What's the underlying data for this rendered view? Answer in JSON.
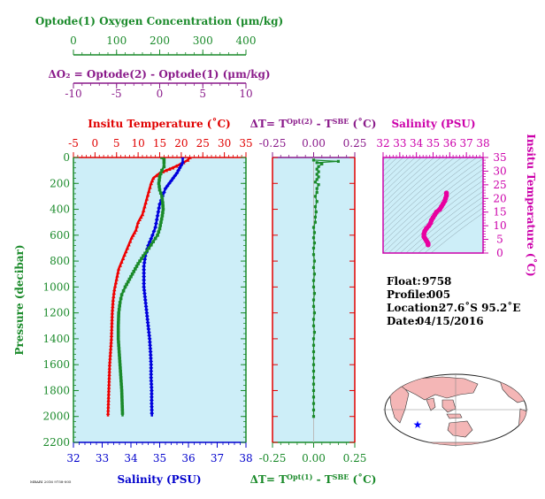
{
  "chart_data": [
    {
      "id": "main_profile",
      "type": "line",
      "ylabel": "Pressure (decibar)",
      "ylim": [
        0,
        2200
      ],
      "yticks": [
        0,
        200,
        400,
        600,
        800,
        1000,
        1200,
        1400,
        1600,
        1800,
        2000,
        2200
      ],
      "axes": {
        "oxygen": {
          "label": "Optode(1) Oxygen Concentration (μm/kg)",
          "range": [
            0,
            400
          ],
          "ticks": [
            0,
            100,
            200,
            300,
            400
          ],
          "color": "#1a8a2a"
        },
        "delta_o2": {
          "label": "ΔO₂ = Optode(2) - Optode(1)   (μm/kg)",
          "range": [
            -10,
            10
          ],
          "ticks": [
            -10,
            -5,
            0,
            5,
            10
          ],
          "color": "#8a1a8a"
        },
        "temperature": {
          "label": "Insitu Temperature (˚C)",
          "range": [
            -5,
            35
          ],
          "ticks": [
            -5,
            0,
            5,
            10,
            15,
            20,
            25,
            30,
            35
          ],
          "color": "#e00000"
        },
        "salinity": {
          "label": "Salinity (PSU)",
          "range": [
            32,
            38
          ],
          "ticks": [
            32,
            33,
            34,
            35,
            36,
            37,
            38
          ],
          "color": "#0000cc"
        }
      },
      "series": [
        {
          "name": "Insitu Temperature",
          "axis": "temperature",
          "color": "#ee0000",
          "points": [
            [
              22,
              0
            ],
            [
              21.5,
              20
            ],
            [
              20.5,
              40
            ],
            [
              18,
              80
            ],
            [
              15,
              120
            ],
            [
              13.5,
              160
            ],
            [
              13,
              200
            ],
            [
              12.5,
              260
            ],
            [
              12,
              320
            ],
            [
              11.5,
              380
            ],
            [
              11,
              440
            ],
            [
              10,
              500
            ],
            [
              9.5,
              560
            ],
            [
              8.5,
              620
            ],
            [
              7.5,
              700
            ],
            [
              6.5,
              780
            ],
            [
              5.5,
              860
            ],
            [
              5,
              940
            ],
            [
              4.5,
              1020
            ],
            [
              4.2,
              1100
            ],
            [
              4,
              1200
            ],
            [
              3.9,
              1300
            ],
            [
              3.8,
              1400
            ],
            [
              3.6,
              1500
            ],
            [
              3.4,
              1600
            ],
            [
              3.3,
              1700
            ],
            [
              3.2,
              1800
            ],
            [
              3.1,
              1900
            ],
            [
              3.0,
              2000
            ]
          ]
        },
        {
          "name": "Salinity",
          "axis": "salinity",
          "color": "#0000dd",
          "points": [
            [
              35.8,
              0
            ],
            [
              35.8,
              40
            ],
            [
              35.7,
              80
            ],
            [
              35.6,
              120
            ],
            [
              35.4,
              180
            ],
            [
              35.2,
              240
            ],
            [
              35.1,
              300
            ],
            [
              35.0,
              360
            ],
            [
              34.95,
              420
            ],
            [
              34.9,
              480
            ],
            [
              34.85,
              540
            ],
            [
              34.75,
              600
            ],
            [
              34.6,
              680
            ],
            [
              34.5,
              760
            ],
            [
              34.45,
              840
            ],
            [
              34.45,
              920
            ],
            [
              34.45,
              1000
            ],
            [
              34.5,
              1100
            ],
            [
              34.55,
              1200
            ],
            [
              34.6,
              1300
            ],
            [
              34.65,
              1400
            ],
            [
              34.68,
              1500
            ],
            [
              34.7,
              1600
            ],
            [
              34.7,
              1700
            ],
            [
              34.72,
              1800
            ],
            [
              34.72,
              1900
            ],
            [
              34.73,
              2000
            ]
          ]
        },
        {
          "name": "Optode(1) Oxygen",
          "axis": "oxygen",
          "color": "#1a8a2a",
          "points": [
            [
              205,
              0
            ],
            [
              210,
              15
            ],
            [
              210,
              40
            ],
            [
              210,
              70
            ],
            [
              205,
              100
            ],
            [
              200,
              150
            ],
            [
              198,
              200
            ],
            [
              200,
              250
            ],
            [
              205,
              300
            ],
            [
              207,
              350
            ],
            [
              208,
              400
            ],
            [
              206,
              450
            ],
            [
              203,
              500
            ],
            [
              200,
              550
            ],
            [
              195,
              600
            ],
            [
              185,
              650
            ],
            [
              175,
              700
            ],
            [
              162,
              760
            ],
            [
              150,
              820
            ],
            [
              140,
              880
            ],
            [
              130,
              940
            ],
            [
              120,
              1000
            ],
            [
              112,
              1060
            ],
            [
              108,
              1120
            ],
            [
              105,
              1200
            ],
            [
              104,
              1300
            ],
            [
              104,
              1400
            ],
            [
              106,
              1500
            ],
            [
              108,
              1600
            ],
            [
              110,
              1700
            ],
            [
              112,
              1800
            ],
            [
              113,
              1900
            ],
            [
              114,
              2000
            ]
          ]
        }
      ]
    },
    {
      "id": "delta_t",
      "type": "scatter",
      "top_label": "ΔT= T",
      "top_sup1": "Opt(2)",
      "top_mid": " - T",
      "top_sup2": "SBE",
      "top_unit": " (˚C)",
      "bottom_label": "ΔT= T",
      "bottom_sup1": "Opt(1)",
      "bottom_mid": " - T",
      "bottom_sup2": "SBE",
      "bottom_unit": " (˚C)",
      "xlim": [
        -0.25,
        0.25
      ],
      "xticks": [
        "-0.25",
        "0.00",
        "0.25"
      ],
      "xtick_values": [
        -0.25,
        0,
        0.25
      ],
      "ylim": [
        0,
        2200
      ],
      "color": "#1a8a2a",
      "points": [
        [
          0.0,
          20
        ],
        [
          0.15,
          30
        ],
        [
          0.02,
          40
        ],
        [
          0.05,
          50
        ],
        [
          0.03,
          70
        ],
        [
          0.02,
          90
        ],
        [
          0.03,
          110
        ],
        [
          0.02,
          130
        ],
        [
          0.03,
          150
        ],
        [
          0.02,
          170
        ],
        [
          0.01,
          190
        ],
        [
          0.03,
          210
        ],
        [
          0.02,
          240
        ],
        [
          0.02,
          270
        ],
        [
          0.01,
          300
        ],
        [
          0.02,
          340
        ],
        [
          0.01,
          380
        ],
        [
          0.015,
          420
        ],
        [
          0.01,
          460
        ],
        [
          0.01,
          500
        ],
        [
          0.0,
          540
        ],
        [
          0.005,
          580
        ],
        [
          0.0,
          620
        ],
        [
          0.005,
          660
        ],
        [
          0.0,
          700
        ],
        [
          0.0,
          750
        ],
        [
          0.005,
          800
        ],
        [
          0.0,
          850
        ],
        [
          0.005,
          900
        ],
        [
          0.0,
          950
        ],
        [
          0.0,
          1000
        ],
        [
          0.005,
          1050
        ],
        [
          0.0,
          1100
        ],
        [
          0.0,
          1150
        ],
        [
          0.005,
          1200
        ],
        [
          0.0,
          1250
        ],
        [
          0.0,
          1300
        ],
        [
          0.005,
          1350
        ],
        [
          0.0,
          1400
        ],
        [
          0.0,
          1450
        ],
        [
          0.0,
          1500
        ],
        [
          0.0,
          1550
        ],
        [
          0.0,
          1600
        ],
        [
          0.0,
          1650
        ],
        [
          0.0,
          1700
        ],
        [
          0.0,
          1750
        ],
        [
          0.0,
          1800
        ],
        [
          0.0,
          1850
        ],
        [
          0.0,
          1900
        ],
        [
          0.0,
          1950
        ],
        [
          0.0,
          2000
        ]
      ]
    },
    {
      "id": "ts_diagram",
      "type": "scatter",
      "xlabel": "Salinity (PSU)",
      "xlim": [
        32,
        38
      ],
      "xticks": [
        32,
        33,
        34,
        35,
        36,
        37,
        38
      ],
      "ylabel": "Insitu Temperature (˚C)",
      "ylim": [
        0,
        35
      ],
      "yticks": [
        0,
        5,
        10,
        15,
        20,
        25,
        30,
        35
      ],
      "color": "#e800a0",
      "points": [
        [
          34.7,
          3.0
        ],
        [
          34.7,
          3.5
        ],
        [
          34.65,
          4
        ],
        [
          34.6,
          4.5
        ],
        [
          34.55,
          5
        ],
        [
          34.5,
          5.5
        ],
        [
          34.45,
          6
        ],
        [
          34.45,
          7
        ],
        [
          34.5,
          8
        ],
        [
          34.6,
          9
        ],
        [
          34.75,
          10
        ],
        [
          34.85,
          11
        ],
        [
          34.9,
          12
        ],
        [
          35.0,
          13
        ],
        [
          35.1,
          14
        ],
        [
          35.2,
          15
        ],
        [
          35.4,
          16
        ],
        [
          35.5,
          17
        ],
        [
          35.6,
          18
        ],
        [
          35.7,
          19
        ],
        [
          35.75,
          20
        ],
        [
          35.8,
          21
        ],
        [
          35.8,
          22
        ]
      ]
    }
  ],
  "info": {
    "float_label": "Float:",
    "float_value": "9758",
    "profile_label": "Profile:",
    "profile_value": "005",
    "location_label": "Location:",
    "location_value": "27.6˚S  95.2˚E",
    "date_label": "Date:",
    "date_value": "04/15/2016"
  },
  "footer_id": "MBARI 2016 9758-005",
  "map": {
    "marker_lon": 95.2,
    "marker_lat": -27.6,
    "marker_color": "#0000ff"
  }
}
